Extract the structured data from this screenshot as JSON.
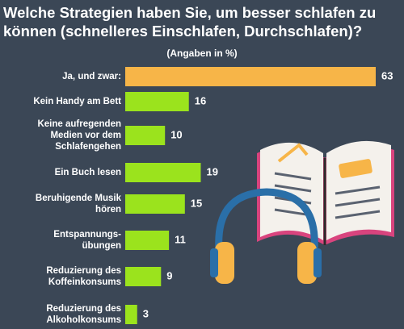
{
  "chart_data": {
    "type": "bar",
    "orientation": "horizontal",
    "title": "Welche Strategien haben Sie, um besser schlafen zu können (schnelleres Einschlafen, Durchschlafen)?",
    "subtitle": "(Angaben in %)",
    "categories": [
      "Ja, und zwar:",
      "Kein Handy am Bett",
      "Keine aufregenden Medien vor dem Schlafengehen",
      "Ein Buch lesen",
      "Beruhigende Musik hören",
      "Entspannungs-übungen",
      "Reduzierung des Koffeinkonsums",
      "Reduzierung des Alkoholkonsums"
    ],
    "values": [
      63,
      16,
      10,
      19,
      15,
      11,
      9,
      3
    ],
    "colors": [
      "#f7b548",
      "#9be31d",
      "#9be31d",
      "#9be31d",
      "#9be31d",
      "#9be31d",
      "#9be31d",
      "#9be31d"
    ]
  }
}
